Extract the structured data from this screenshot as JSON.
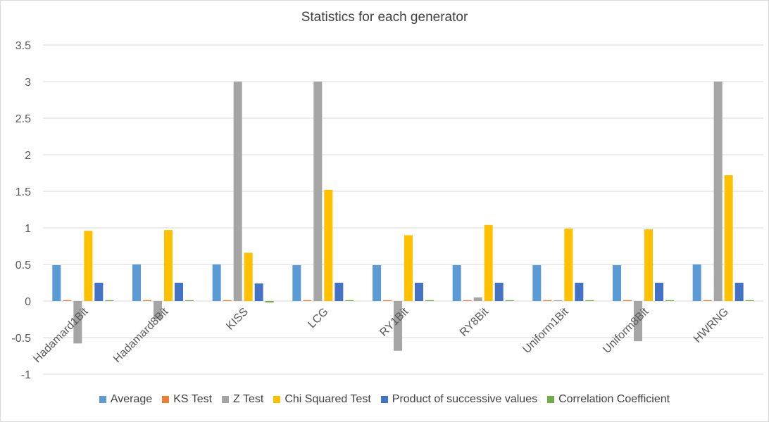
{
  "chart_data": {
    "type": "bar",
    "title": "Statistics for each generator",
    "categories": [
      "Hadamard1Bit",
      "Hadamard8Bit",
      "KISS",
      "LCG",
      "RY1Bit",
      "RY8Bit",
      "Uniform1Bit",
      "Uniform8Bit",
      "HWRNG"
    ],
    "ylim": [
      -1,
      3.5
    ],
    "yticks": [
      "-1",
      "-0.5",
      "0",
      "0.5",
      "1",
      "1.5",
      "2",
      "2.5",
      "3",
      "3.5"
    ],
    "grid": true,
    "legend_position": "bottom",
    "series": [
      {
        "name": "Average",
        "color": "#5b9bd5",
        "values": [
          0.49,
          0.5,
          0.5,
          0.49,
          0.49,
          0.49,
          0.49,
          0.49,
          0.5
        ]
      },
      {
        "name": "KS Test",
        "color": "#ed7d31",
        "values": [
          0.01,
          0.01,
          0.01,
          0.01,
          0.01,
          0.01,
          0.01,
          0.01,
          0.01
        ]
      },
      {
        "name": "Z Test",
        "color": "#a5a5a5",
        "values": [
          -0.58,
          -0.25,
          3.0,
          3.0,
          -0.68,
          0.05,
          0.01,
          -0.55,
          3.0
        ]
      },
      {
        "name": "Chi Squared Test",
        "color": "#ffc000",
        "values": [
          0.96,
          0.97,
          0.66,
          1.52,
          0.9,
          1.04,
          0.99,
          0.98,
          1.72
        ]
      },
      {
        "name": "Product of successive values",
        "color": "#4472c4",
        "values": [
          0.25,
          0.25,
          0.24,
          0.25,
          0.25,
          0.25,
          0.25,
          0.25,
          0.25
        ]
      },
      {
        "name": "Correlation Coefficient",
        "color": "#70ad47",
        "values": [
          0.01,
          0.01,
          -0.02,
          0.01,
          0.0,
          0.01,
          0.01,
          0.0,
          0.0
        ]
      }
    ]
  }
}
